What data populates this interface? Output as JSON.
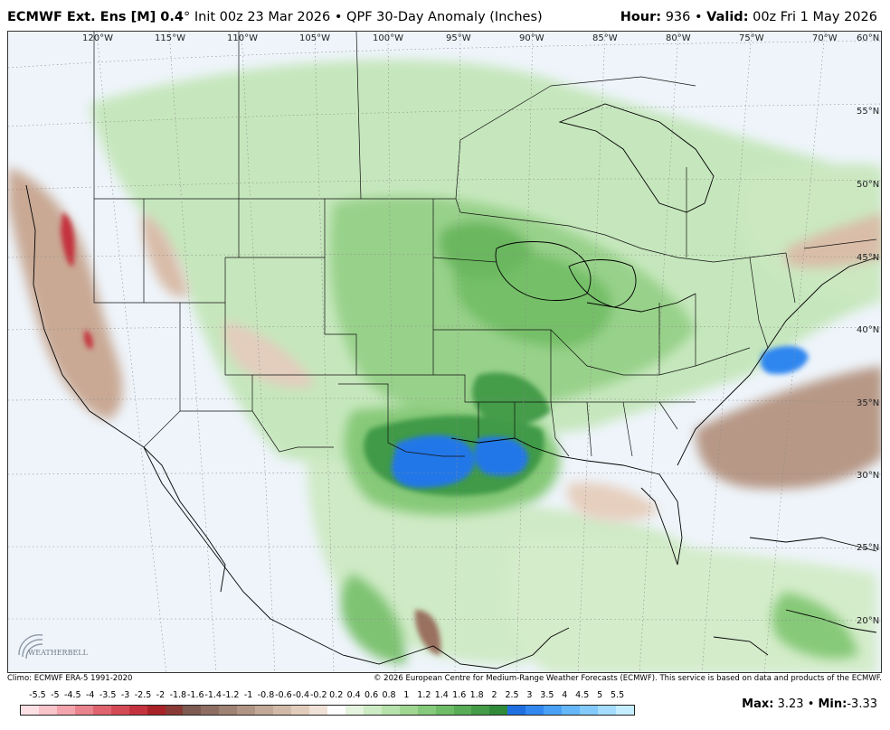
{
  "header": {
    "model": "ECMWF Ext. Ens [M] 0.4",
    "degree": "°",
    "init": "Init 00z 23 Mar 2026",
    "separator": "•",
    "product": "QPF 30-Day Anomaly (Inches)",
    "hour_label": "Hour:",
    "hour_value": "936",
    "valid_label": "Valid:",
    "valid_value": "00z Fri 1 May 2026"
  },
  "map": {
    "lon_labels": [
      "120°W",
      "115°W",
      "110°W",
      "105°W",
      "100°W",
      "95°W",
      "90°W",
      "85°W",
      "80°W",
      "75°W",
      "70°W"
    ],
    "lat_labels": [
      "60°N",
      "55°N",
      "50°N",
      "45°N",
      "40°N",
      "35°N",
      "30°N",
      "25°N",
      "20°N"
    ],
    "logo_text": "WEATHERBELL"
  },
  "footer": {
    "climo": "Climo: ECMWF ERA-5 1991-2020",
    "copyright": "© 2026 European Centre for Medium-Range Weather Forecasts (ECMWF). This service is based on data and products of the ECMWF."
  },
  "legend": {
    "labels": [
      "-5.5",
      "-5",
      "-4.5",
      "-4",
      "-3.5",
      "-3",
      "-2.5",
      "-2",
      "-1.8",
      "-1.6",
      "-1.4",
      "-1.2",
      "-1",
      "-0.8",
      "-0.6",
      "-0.4",
      "-0.2",
      "0.2",
      "0.4",
      "0.6",
      "0.8",
      "1",
      "1.2",
      "1.4",
      "1.6",
      "1.8",
      "2",
      "2.5",
      "3",
      "3.5",
      "4",
      "4.5",
      "5",
      "5.5"
    ],
    "colors": [
      "#fde0e4",
      "#f8c3c9",
      "#f2a3ab",
      "#e9838d",
      "#df6470",
      "#d44a55",
      "#c4333d",
      "#a82228",
      "#8a3a36",
      "#7e5a52",
      "#8e6e62",
      "#9e8273",
      "#b09585",
      "#c2a897",
      "#d2baa8",
      "#e2cdbc",
      "#f0e2d6",
      "#ffffff",
      "#e4f4de",
      "#cdebc4",
      "#b7e2ab",
      "#9fd692",
      "#85c97a",
      "#6ebc66",
      "#59ad56",
      "#449c48",
      "#2f8a3a",
      "#1f6fe0",
      "#3388f0",
      "#4aa0f5",
      "#66b6fa",
      "#83cafc",
      "#a4ddfe",
      "#c4eeff"
    ],
    "max_label": "Max:",
    "max_value": "3.23",
    "min_label": "Min:",
    "min_value": "-3.33",
    "separator": "•"
  }
}
